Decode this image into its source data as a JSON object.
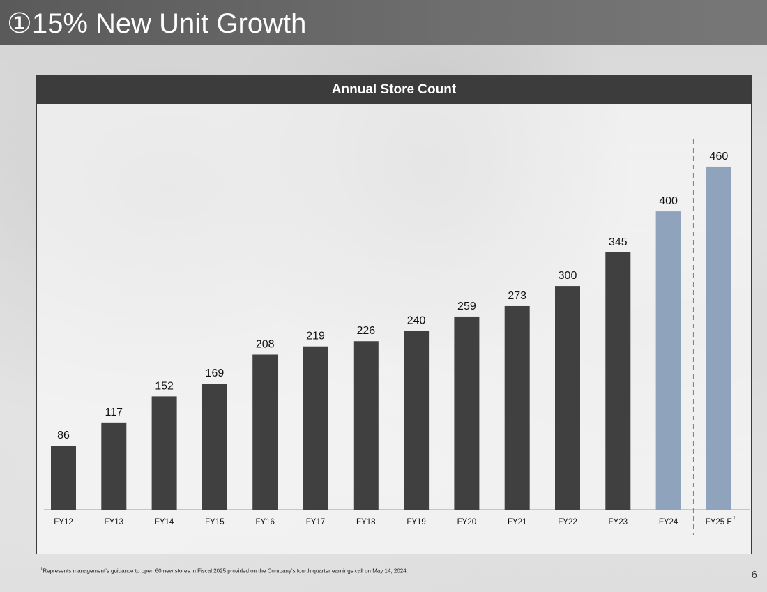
{
  "slide": {
    "title": "①15% New Unit Growth",
    "footnote_marker": "1",
    "footnote_text": "Represents management’s guidance to open 60 new stores in Fiscal 2025 provided on the Company’s fourth quarter earnings call on May 14, 2024.",
    "page_number": "6"
  },
  "chart_data": {
    "type": "bar",
    "title": "Annual Store Count",
    "xlabel": "",
    "ylabel": "",
    "categories": [
      "FY12",
      "FY13",
      "FY14",
      "FY15",
      "FY16",
      "FY17",
      "FY18",
      "FY19",
      "FY20",
      "FY21",
      "FY22",
      "FY23",
      "FY24",
      "FY25 E"
    ],
    "category_superscripts": [
      "",
      "",
      "",
      "",
      "",
      "",
      "",
      "",
      "",
      "",
      "",
      "",
      "",
      "1"
    ],
    "values": [
      86,
      117,
      152,
      169,
      208,
      219,
      226,
      240,
      259,
      273,
      300,
      345,
      400,
      460
    ],
    "data_labels": [
      "86",
      "117",
      "152",
      "169",
      "208",
      "219",
      "226",
      "240",
      "259",
      "273",
      "300",
      "345",
      "400",
      "460"
    ],
    "ylim": [
      0,
      500
    ],
    "grid": false,
    "legend": "none",
    "colors": {
      "actual": "#404040",
      "highlight": "#8fa3bd",
      "divider": "#6f86a8"
    },
    "highlighted_categories": [
      "FY24",
      "FY25 E"
    ],
    "divider_between": [
      "FY24",
      "FY25 E"
    ]
  }
}
